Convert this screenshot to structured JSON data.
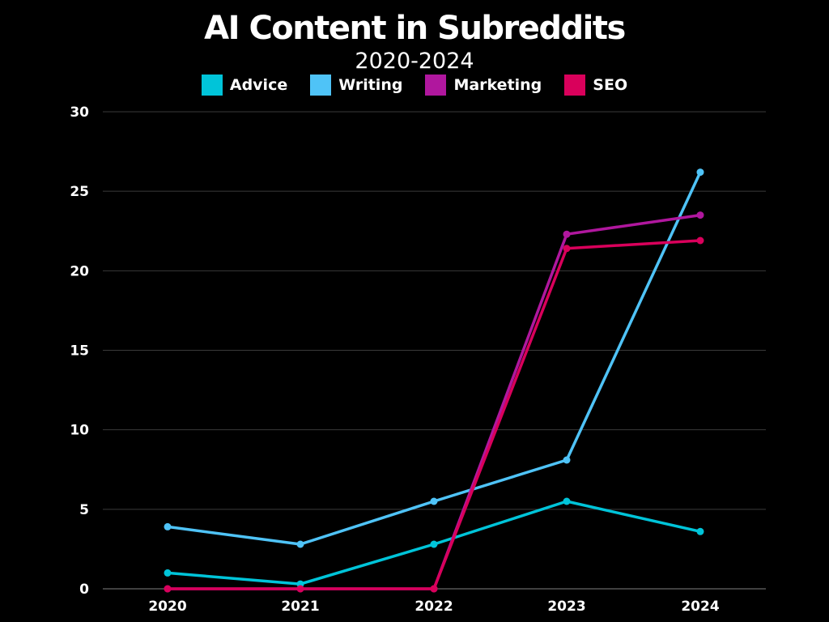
{
  "chart_data": {
    "type": "line",
    "title": "AI Content in Subreddits",
    "subtitle": "2020-2024",
    "categories": [
      "2020",
      "2021",
      "2022",
      "2023",
      "2024"
    ],
    "series": [
      {
        "name": "Advice",
        "color": "#00c4d9",
        "values": [
          1.0,
          0.3,
          2.8,
          5.5,
          3.6
        ]
      },
      {
        "name": "Writing",
        "color": "#4fc3f7",
        "values": [
          3.9,
          2.8,
          5.5,
          8.1,
          26.2
        ]
      },
      {
        "name": "Marketing",
        "color": "#b0179e",
        "values": [
          0.0,
          0.0,
          0.0,
          22.3,
          23.5
        ]
      },
      {
        "name": "SEO",
        "color": "#d9005b",
        "values": [
          0.0,
          0.0,
          0.0,
          21.4,
          21.9
        ]
      }
    ],
    "yticks": [
      "0",
      "5",
      "10",
      "15",
      "20",
      "25",
      "30"
    ],
    "ylim": [
      0,
      30
    ],
    "xlabel": "",
    "ylabel": "",
    "grid": true,
    "legend": "top-center"
  }
}
